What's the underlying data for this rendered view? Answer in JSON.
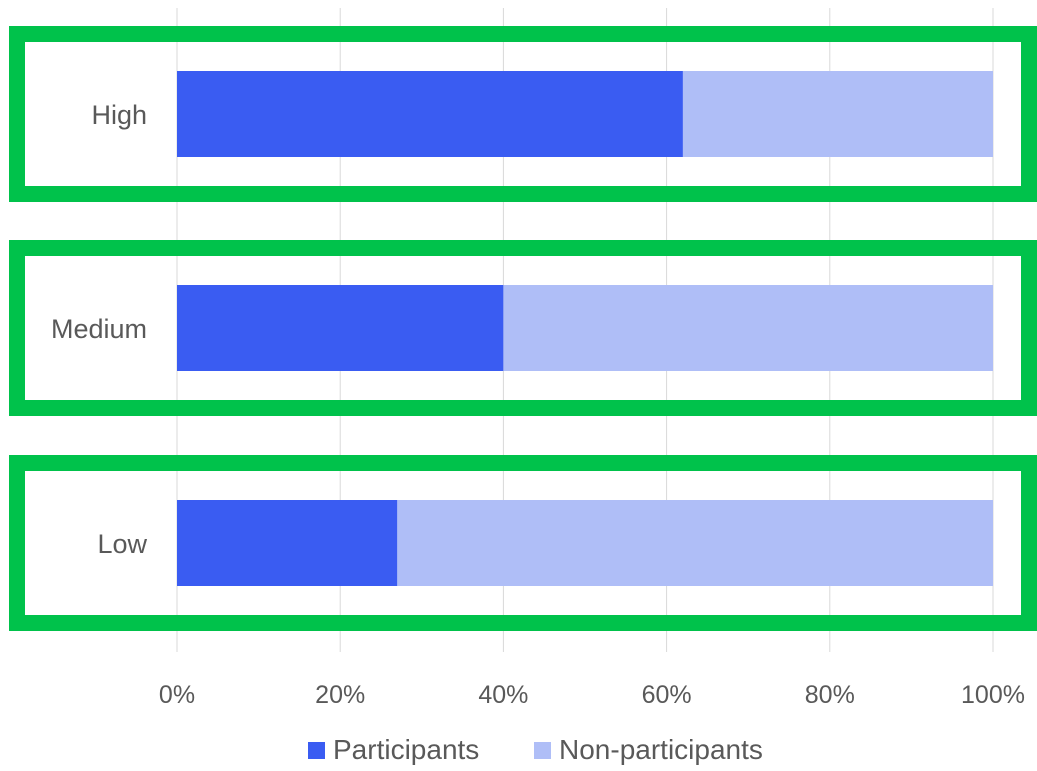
{
  "chart_data": {
    "type": "bar",
    "orientation": "horizontal",
    "stacked": "percent",
    "categories": [
      "High",
      "Medium",
      "Low"
    ],
    "series": [
      {
        "name": "Participants",
        "values": [
          62,
          40,
          27
        ],
        "color": "#3A5CF2"
      },
      {
        "name": "Non-participants",
        "values": [
          38,
          60,
          73
        ],
        "color": "#AFBEF7"
      }
    ],
    "xlim": [
      0,
      100
    ],
    "x_ticks": [
      "0%",
      "20%",
      "40%",
      "60%",
      "80%",
      "100%"
    ],
    "grid": "vertical",
    "legend_position": "bottom",
    "highlight_color": "#00C24B",
    "highlighted_categories": [
      "High",
      "Medium",
      "Low"
    ]
  }
}
